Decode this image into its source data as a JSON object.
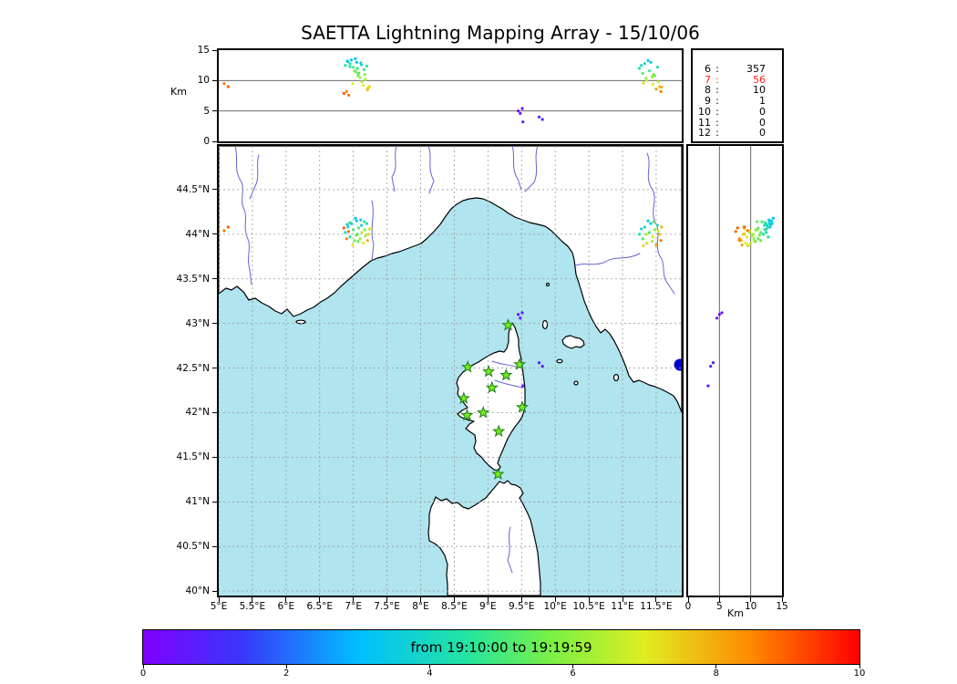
{
  "title": "SAETTA Lightning Mapping Array - 15/10/06",
  "colors": {
    "sea": "#b0e4ef",
    "land": "#ffffff",
    "coast": "#000000",
    "river": "#6464d2",
    "grid": "#9a9a9a",
    "lake": "#0000cd",
    "station_fill": "#76f015",
    "station_stroke": "#1e7a1e",
    "stats_highlight": "#ff2222"
  },
  "top_panel": {
    "ylabel": "Km",
    "ticks": [
      {
        "v": 0,
        "label": "0"
      },
      {
        "v": 5,
        "label": "5"
      },
      {
        "v": 10,
        "label": "10"
      },
      {
        "v": 15,
        "label": "15"
      }
    ]
  },
  "stats_panel": {
    "rows": [
      {
        "id": "6",
        "count": "357",
        "highlight": false
      },
      {
        "id": "7",
        "count": "56",
        "highlight": true
      },
      {
        "id": "8",
        "count": "10",
        "highlight": false
      },
      {
        "id": "9",
        "count": "1",
        "highlight": false
      },
      {
        "id": "10",
        "count": "0",
        "highlight": false
      },
      {
        "id": "11",
        "count": "0",
        "highlight": false
      },
      {
        "id": "12",
        "count": "0",
        "highlight": false
      }
    ]
  },
  "map_panel": {
    "lat_ticks": [
      {
        "v": 44.5,
        "label": "44.5°N"
      },
      {
        "v": 44.0,
        "label": "44°N"
      },
      {
        "v": 43.5,
        "label": "43.5°N"
      },
      {
        "v": 43.0,
        "label": "43°N"
      },
      {
        "v": 42.5,
        "label": "42.5°N"
      },
      {
        "v": 42.0,
        "label": "42°N"
      },
      {
        "v": 41.5,
        "label": "41.5°N"
      },
      {
        "v": 41.0,
        "label": "41°N"
      },
      {
        "v": 40.5,
        "label": "40.5°N"
      },
      {
        "v": 40.0,
        "label": "40°N"
      }
    ],
    "lon_ticks": [
      {
        "v": 5.0,
        "label": "5°E"
      },
      {
        "v": 5.5,
        "label": "5.5°E"
      },
      {
        "v": 6.0,
        "label": "6°E"
      },
      {
        "v": 6.5,
        "label": "6.5°E"
      },
      {
        "v": 7.0,
        "label": "7°E"
      },
      {
        "v": 7.5,
        "label": "7.5°E"
      },
      {
        "v": 8.0,
        "label": "8°E"
      },
      {
        "v": 8.5,
        "label": "8.5°E"
      },
      {
        "v": 9.0,
        "label": "9°E"
      },
      {
        "v": 9.5,
        "label": "9.5°E"
      },
      {
        "v": 10.0,
        "label": "10°E"
      },
      {
        "v": 10.5,
        "label": "10.5°E"
      },
      {
        "v": 11.0,
        "label": "11°E"
      },
      {
        "v": 11.5,
        "label": "11.5°E"
      }
    ]
  },
  "right_panel": {
    "xlabel": "Km",
    "ticks": [
      {
        "v": 0,
        "label": "0"
      },
      {
        "v": 5,
        "label": "5"
      },
      {
        "v": 10,
        "label": "10"
      },
      {
        "v": 15,
        "label": "15"
      }
    ]
  },
  "colorbar": {
    "label": "from 19:10:00 to 19:19:59",
    "range": [
      0,
      10
    ],
    "ticks": [
      {
        "v": 0,
        "label": "0"
      },
      {
        "v": 2,
        "label": "2"
      },
      {
        "v": 4,
        "label": "4"
      },
      {
        "v": 6,
        "label": "6"
      },
      {
        "v": 8,
        "label": "8"
      },
      {
        "v": 10,
        "label": "10"
      }
    ]
  },
  "chart_data": {
    "type": "scatter",
    "description": "Lightning VHF sources (lon, lat, altitude km, time 0-10 min) colored by time; map panel lon/lat, top panel lon/alt, right panel alt/lat",
    "lon_extent": [
      5.0,
      11.88
    ],
    "lat_extent": [
      39.95,
      44.99
    ],
    "alt_extent_km": [
      0,
      15
    ],
    "alt_reflines_km": [
      5,
      10
    ],
    "time_scale": {
      "start": "19:10:00",
      "end": "19:19:59",
      "range": [
        0,
        10
      ]
    },
    "colormap_stops": [
      [
        0,
        "#8000ff"
      ],
      [
        0.14,
        "#3838fa"
      ],
      [
        0.3,
        "#00bfff"
      ],
      [
        0.45,
        "#22e5a2"
      ],
      [
        0.57,
        "#7af043"
      ],
      [
        0.7,
        "#e0ee22"
      ],
      [
        0.85,
        "#ff8800"
      ],
      [
        1,
        "#ff0000"
      ]
    ],
    "stations_lonlat": [
      [
        9.3,
        42.98
      ],
      [
        8.7,
        42.51
      ],
      [
        9.01,
        42.46
      ],
      [
        9.27,
        42.42
      ],
      [
        9.47,
        42.54
      ],
      [
        9.06,
        42.28
      ],
      [
        8.64,
        42.16
      ],
      [
        9.51,
        42.06
      ],
      [
        8.69,
        41.97
      ],
      [
        8.93,
        42.0
      ],
      [
        9.16,
        41.79
      ],
      [
        9.15,
        41.31
      ]
    ],
    "sources": [
      [
        6.88,
        44.02,
        12.5,
        4.2
      ],
      [
        6.92,
        44.08,
        13.1,
        3.8
      ],
      [
        6.95,
        43.97,
        12.8,
        4.5
      ],
      [
        6.97,
        44.12,
        13.4,
        3.5
      ],
      [
        7.0,
        44.05,
        12.2,
        5.0
      ],
      [
        7.02,
        43.93,
        11.6,
        5.5
      ],
      [
        7.05,
        44.15,
        13.0,
        3.2
      ],
      [
        7.06,
        44.0,
        12.0,
        4.8
      ],
      [
        7.08,
        44.07,
        11.2,
        5.2
      ],
      [
        7.1,
        43.95,
        10.5,
        6.0
      ],
      [
        7.12,
        44.1,
        12.6,
        4.0
      ],
      [
        7.13,
        44.02,
        9.8,
        6.5
      ],
      [
        7.15,
        43.9,
        9.2,
        7.0
      ],
      [
        7.17,
        44.05,
        11.0,
        5.8
      ],
      [
        7.18,
        43.98,
        10.2,
        6.2
      ],
      [
        7.2,
        44.12,
        12.4,
        4.4
      ],
      [
        7.22,
        44.0,
        8.8,
        7.5
      ],
      [
        6.9,
        43.95,
        8.2,
        8.5
      ],
      [
        6.93,
        44.03,
        7.6,
        8.8
      ],
      [
        6.86,
        44.07,
        7.9,
        9.0
      ],
      [
        7.03,
        44.18,
        13.6,
        3.0
      ],
      [
        6.99,
        43.88,
        9.5,
        6.8
      ],
      [
        7.07,
        43.92,
        10.8,
        5.4
      ],
      [
        7.11,
        44.16,
        12.9,
        3.6
      ],
      [
        7.24,
        44.06,
        9.0,
        7.2
      ],
      [
        6.95,
        44.13,
        12.3,
        4.6
      ],
      [
        7.16,
        44.14,
        11.8,
        4.9
      ],
      [
        7.21,
        43.93,
        8.5,
        7.8
      ],
      [
        6.91,
        44.11,
        13.2,
        3.4
      ],
      [
        7.04,
        43.99,
        11.4,
        5.6
      ],
      [
        11.25,
        44.0,
        12.0,
        4.5
      ],
      [
        11.3,
        43.95,
        11.2,
        5.2
      ],
      [
        11.33,
        44.08,
        12.8,
        3.8
      ],
      [
        11.36,
        43.9,
        10.0,
        6.5
      ],
      [
        11.4,
        44.02,
        11.6,
        5.0
      ],
      [
        11.42,
        44.12,
        13.0,
        3.5
      ],
      [
        11.45,
        43.97,
        9.4,
        7.0
      ],
      [
        11.48,
        44.05,
        10.8,
        5.8
      ],
      [
        11.5,
        43.88,
        8.6,
        8.2
      ],
      [
        11.52,
        44.1,
        12.2,
        4.2
      ],
      [
        11.55,
        44.0,
        9.0,
        7.6
      ],
      [
        11.57,
        43.93,
        8.2,
        8.6
      ],
      [
        11.38,
        44.15,
        13.3,
        3.2
      ],
      [
        11.28,
        44.06,
        12.5,
        4.0
      ],
      [
        11.46,
        44.14,
        11.0,
        5.5
      ],
      [
        11.53,
        44.04,
        9.8,
        6.8
      ],
      [
        11.35,
        44.0,
        10.4,
        6.2
      ],
      [
        11.58,
        44.08,
        8.9,
        8.0
      ],
      [
        11.31,
        43.87,
        9.6,
        7.3
      ],
      [
        11.44,
        43.92,
        10.6,
        6.0
      ],
      [
        9.45,
        43.1,
        5.0,
        0.3
      ],
      [
        9.48,
        43.06,
        4.6,
        0.5
      ],
      [
        9.51,
        43.12,
        5.4,
        0.4
      ],
      [
        9.76,
        42.56,
        4.0,
        0.8
      ],
      [
        9.81,
        42.52,
        3.6,
        0.9
      ],
      [
        9.52,
        42.3,
        3.2,
        0.6
      ],
      [
        5.08,
        44.04,
        9.5,
        8.7
      ],
      [
        5.14,
        44.08,
        9.0,
        9.0
      ]
    ]
  }
}
